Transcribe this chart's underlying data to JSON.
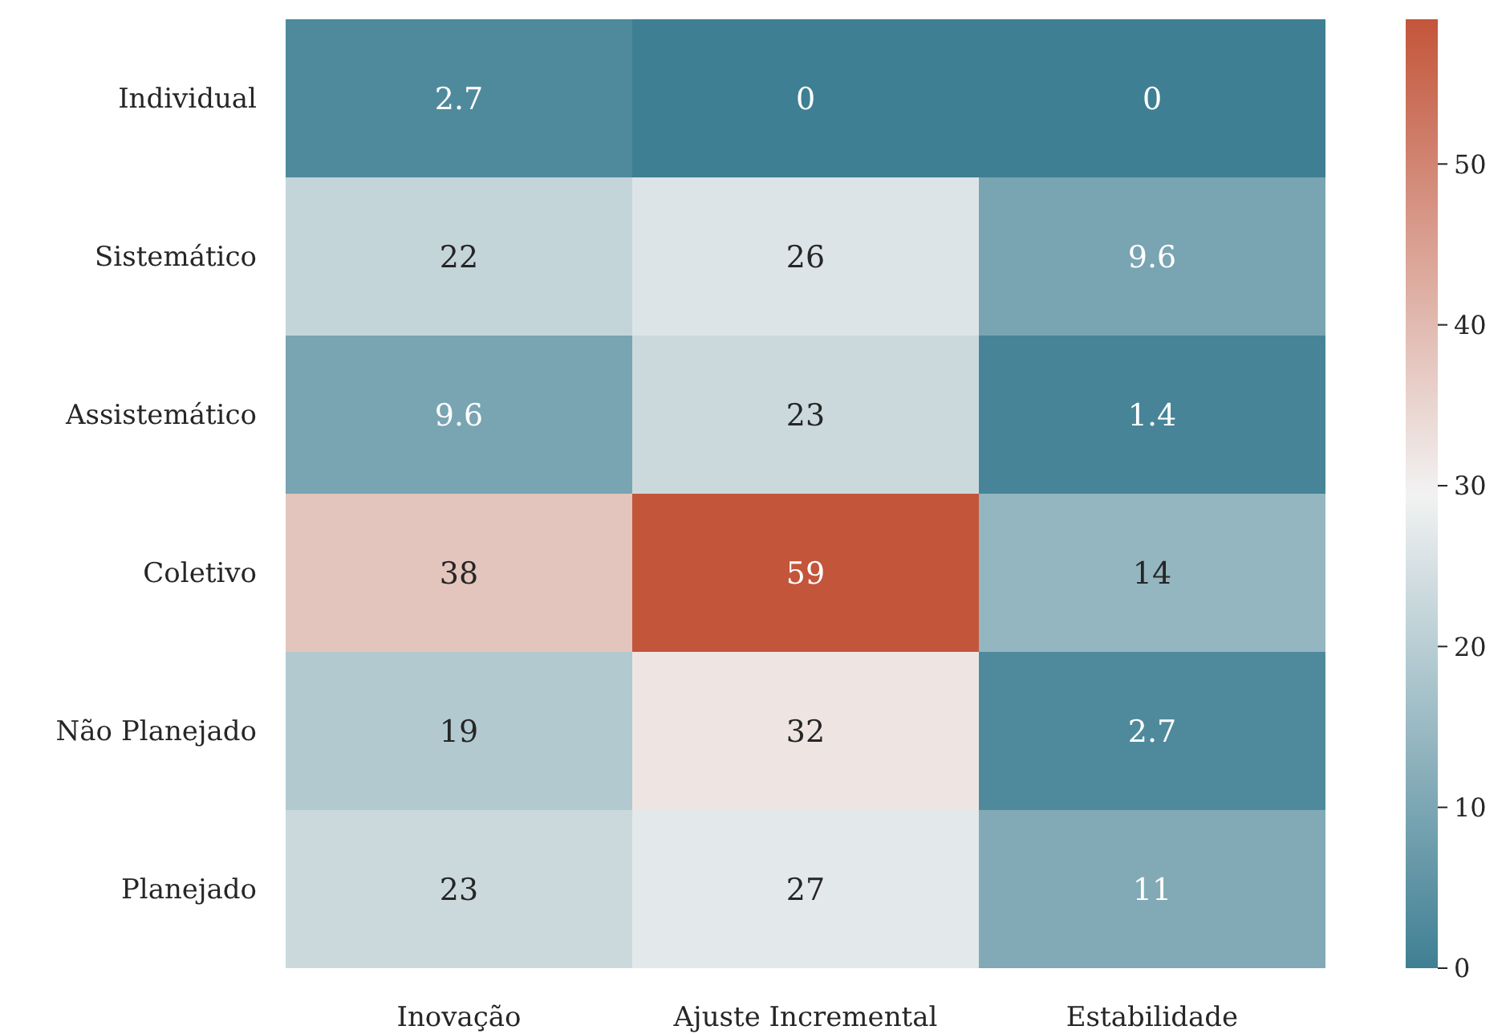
{
  "chart_data": {
    "type": "heatmap",
    "categories": [
      "Inovação",
      "Ajuste Incremental",
      "Estabilidade"
    ],
    "y_categories": [
      "Individual",
      "Sistemático",
      "Assistemático",
      "Coletivo",
      "Não Planejado",
      "Planejado"
    ],
    "cells": [
      [
        2.7,
        0,
        0
      ],
      [
        22,
        26,
        9.6
      ],
      [
        9.6,
        23,
        1.4
      ],
      [
        38,
        59,
        14
      ],
      [
        19,
        32,
        2.7
      ],
      [
        23,
        27,
        11
      ]
    ],
    "data_labels": true,
    "clim": [
      0,
      59
    ],
    "cticks": [
      0,
      10,
      20,
      30,
      40,
      50
    ],
    "colors": [
      "#3f7f93",
      "#f2f2f2",
      "#c3553a"
    ]
  }
}
